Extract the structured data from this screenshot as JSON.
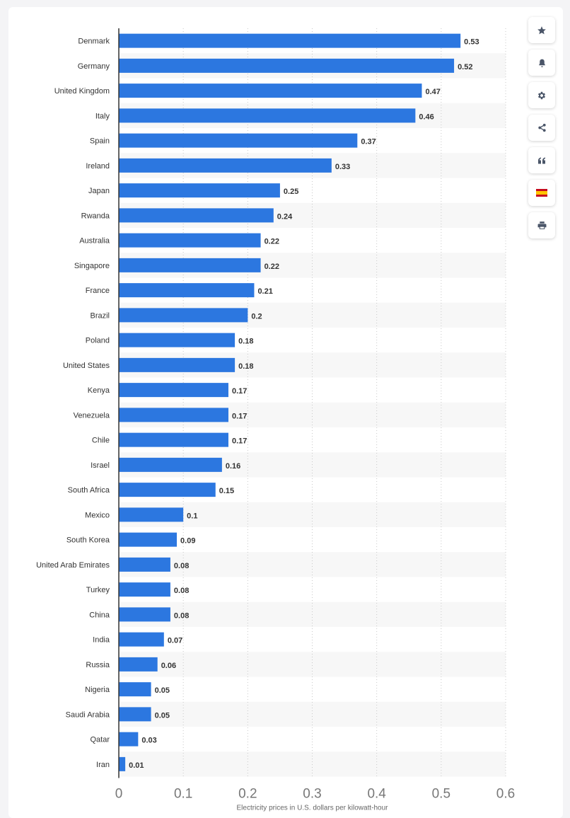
{
  "chart_data": {
    "type": "bar",
    "orientation": "horizontal",
    "title": "",
    "xlabel": "Electricity prices in U.S. dollars per kilowatt-hour",
    "ylabel": "",
    "xlim": [
      0,
      0.6
    ],
    "ticks": [
      "0",
      "0.1",
      "0.2",
      "0.3",
      "0.4",
      "0.5",
      "0.6"
    ],
    "grid": "vertical-dotted",
    "legend": "none",
    "categories": [
      "Denmark",
      "Germany",
      "United Kingdom",
      "Italy",
      "Spain",
      "Ireland",
      "Japan",
      "Rwanda",
      "Australia",
      "Singapore",
      "France",
      "Brazil",
      "Poland",
      "United States",
      "Kenya",
      "Venezuela",
      "Chile",
      "Israel",
      "South Africa",
      "Mexico",
      "South Korea",
      "United Arab Emirates",
      "Turkey",
      "China",
      "India",
      "Russia",
      "Nigeria",
      "Saudi Arabia",
      "Qatar",
      "Iran"
    ],
    "values": [
      0.53,
      0.52,
      0.47,
      0.46,
      0.37,
      0.33,
      0.25,
      0.24,
      0.22,
      0.22,
      0.21,
      0.2,
      0.18,
      0.18,
      0.17,
      0.17,
      0.17,
      0.16,
      0.15,
      0.1,
      0.09,
      0.08,
      0.08,
      0.08,
      0.07,
      0.06,
      0.05,
      0.05,
      0.03,
      0.01
    ],
    "bar_color": "#2c77e0",
    "alt_row_color": "#f7f7f7"
  },
  "toolbar": {
    "items": [
      {
        "name": "star-icon"
      },
      {
        "name": "bell-icon"
      },
      {
        "name": "gear-icon"
      },
      {
        "name": "share-icon"
      },
      {
        "name": "quote-icon"
      },
      {
        "name": "spanish-flag-icon"
      },
      {
        "name": "print-icon"
      }
    ]
  }
}
